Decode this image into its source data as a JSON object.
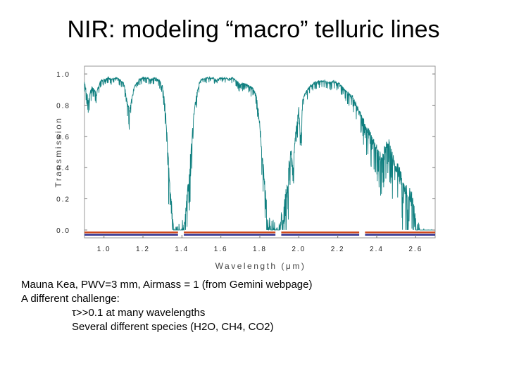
{
  "slide": {
    "title": "NIR: modeling “macro” telluric lines",
    "caption_lines": [
      "Mauna Kea, PWV=3 mm, Airmass = 1 (from Gemini webpage)",
      "A different challenge:",
      "τ>>0.1 at many wavelengths",
      "Several different species (H2O, CH4, CO2)"
    ]
  },
  "chart_data": {
    "type": "line",
    "xlabel": "Wavelength (μm)",
    "ylabel": "Transmission",
    "xlim": [
      0.9,
      2.7
    ],
    "ylim": [
      -0.05,
      1.05
    ],
    "x_ticks": [
      1.0,
      1.2,
      1.4,
      1.6,
      1.8,
      2.0,
      2.2,
      2.4,
      2.6
    ],
    "x_tick_labels": [
      "1.0",
      "1.2",
      "1.4",
      "1.6",
      "1.8",
      "2.0",
      "2.2",
      "2.4",
      "2.6"
    ],
    "y_ticks": [
      0.0,
      0.2,
      0.4,
      0.6,
      0.8,
      1.0
    ],
    "y_tick_labels": [
      "0.0",
      "0.2",
      "0.4",
      "0.6",
      "0.8",
      "1.0"
    ],
    "grid": false,
    "series": [
      {
        "color": "#0f7f7f",
        "x": [
          0.9,
          0.92,
          0.94,
          0.96,
          0.98,
          1.0,
          1.02,
          1.04,
          1.06,
          1.08,
          1.1,
          1.11,
          1.12,
          1.13,
          1.14,
          1.15,
          1.16,
          1.18,
          1.2,
          1.22,
          1.24,
          1.26,
          1.28,
          1.3,
          1.31,
          1.32,
          1.33,
          1.34,
          1.35,
          1.36,
          1.37,
          1.38,
          1.39,
          1.4,
          1.41,
          1.42,
          1.43,
          1.44,
          1.45,
          1.46,
          1.47,
          1.48,
          1.49,
          1.5,
          1.52,
          1.54,
          1.56,
          1.58,
          1.6,
          1.62,
          1.64,
          1.66,
          1.68,
          1.7,
          1.72,
          1.74,
          1.76,
          1.78,
          1.79,
          1.8,
          1.81,
          1.82,
          1.83,
          1.84,
          1.85,
          1.86,
          1.87,
          1.88,
          1.89,
          1.9,
          1.91,
          1.92,
          1.93,
          1.94,
          1.95,
          1.96,
          1.97,
          1.98,
          1.99,
          2.0,
          2.01,
          2.02,
          2.04,
          2.06,
          2.08,
          2.1,
          2.12,
          2.14,
          2.16,
          2.18,
          2.2,
          2.22,
          2.24,
          2.26,
          2.28,
          2.3,
          2.32,
          2.34,
          2.36,
          2.38,
          2.4,
          2.42,
          2.44,
          2.46,
          2.48,
          2.5,
          2.52,
          2.54,
          2.56,
          2.58,
          2.6,
          2.62,
          2.64,
          2.66,
          2.68,
          2.7
        ],
        "y": [
          0.95,
          0.85,
          0.93,
          0.88,
          0.96,
          0.97,
          0.98,
          0.97,
          0.98,
          0.97,
          0.95,
          0.9,
          0.82,
          0.78,
          0.85,
          0.9,
          0.93,
          0.97,
          0.98,
          0.98,
          0.97,
          0.98,
          0.97,
          0.93,
          0.85,
          0.7,
          0.5,
          0.3,
          0.15,
          0.04,
          0.02,
          0.05,
          0.03,
          0.1,
          0.05,
          0.15,
          0.3,
          0.45,
          0.6,
          0.75,
          0.85,
          0.9,
          0.95,
          0.97,
          0.98,
          0.98,
          0.98,
          0.97,
          0.98,
          0.98,
          0.97,
          0.98,
          0.96,
          0.94,
          0.95,
          0.93,
          0.92,
          0.88,
          0.8,
          0.7,
          0.55,
          0.4,
          0.25,
          0.12,
          0.08,
          0.05,
          0.1,
          0.03,
          0.06,
          0.04,
          0.15,
          0.1,
          0.25,
          0.3,
          0.45,
          0.55,
          0.4,
          0.6,
          0.7,
          0.8,
          0.6,
          0.85,
          0.9,
          0.93,
          0.95,
          0.96,
          0.96,
          0.96,
          0.95,
          0.96,
          0.95,
          0.93,
          0.9,
          0.88,
          0.86,
          0.8,
          0.75,
          0.7,
          0.65,
          0.6,
          0.55,
          0.5,
          0.55,
          0.6,
          0.5,
          0.45,
          0.4,
          0.3,
          0.3,
          0.25,
          0.1,
          0.03,
          0.02,
          0.01,
          0.01,
          0.01
        ]
      }
    ],
    "bands": [
      {
        "color": "#d04a1c",
        "y": -0.015,
        "segments": [
          [
            0.9,
            1.38
          ],
          [
            1.41,
            1.88
          ],
          [
            1.91,
            2.31
          ],
          [
            2.34,
            2.7
          ]
        ]
      },
      {
        "color": "#2f2f8f",
        "y": -0.03,
        "segments": [
          [
            0.9,
            1.38
          ],
          [
            1.41,
            1.88
          ],
          [
            1.91,
            2.31
          ],
          [
            2.34,
            2.7
          ]
        ]
      }
    ]
  }
}
